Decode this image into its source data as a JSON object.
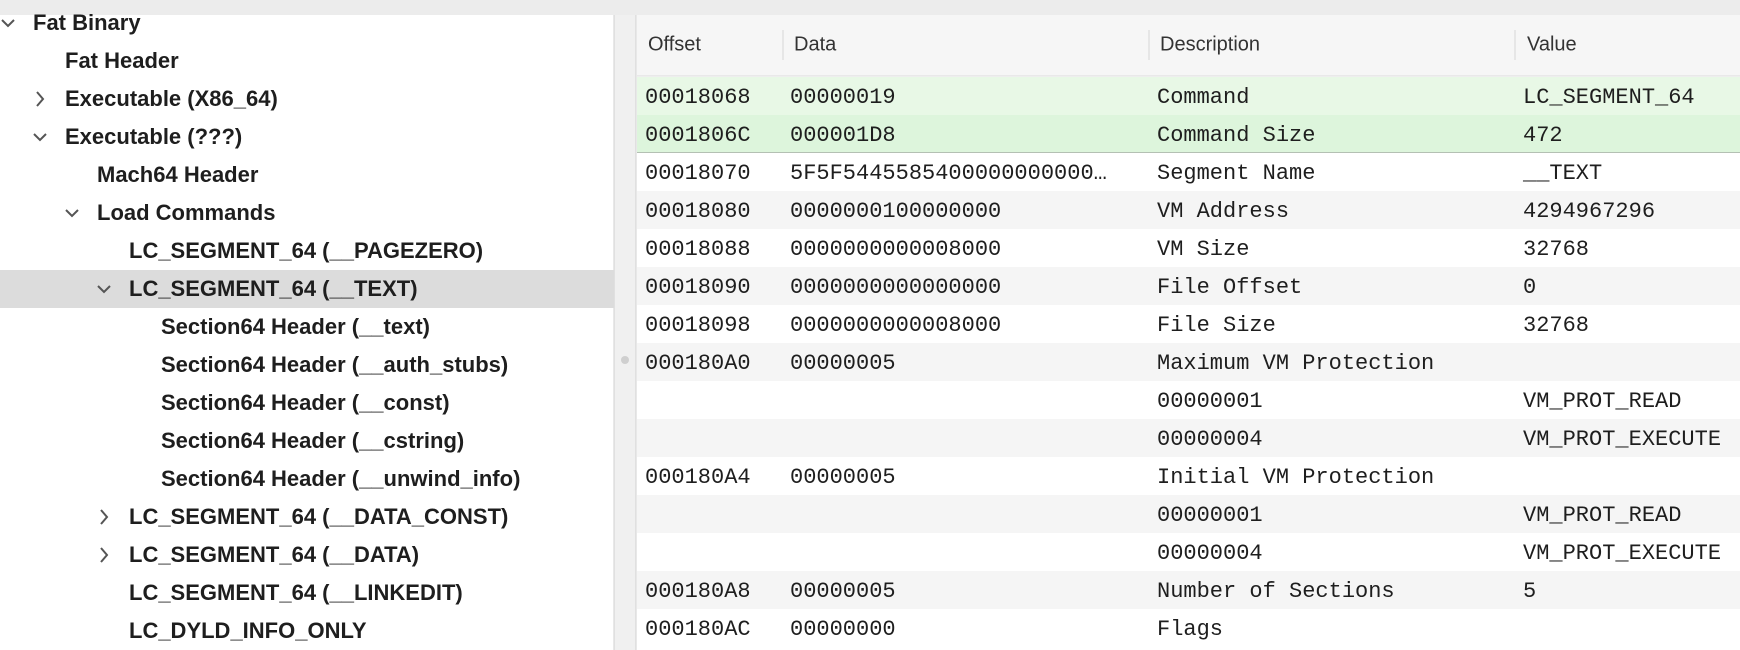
{
  "tree": [
    {
      "label": "Fat Binary",
      "depth": 0,
      "expander": "open"
    },
    {
      "label": "Fat Header",
      "depth": 1
    },
    {
      "label": "Executable  (X86_64)",
      "depth": 1,
      "expander": "closed"
    },
    {
      "label": "Executable  (???)",
      "depth": 1,
      "expander": "open"
    },
    {
      "label": "Mach64 Header",
      "depth": 2
    },
    {
      "label": "Load Commands",
      "depth": 2,
      "expander": "open"
    },
    {
      "label": "LC_SEGMENT_64 (__PAGEZERO)",
      "depth": 3
    },
    {
      "label": "LC_SEGMENT_64 (__TEXT)",
      "depth": 3,
      "expander": "open",
      "selected": true
    },
    {
      "label": "Section64 Header (__text)",
      "depth": 4
    },
    {
      "label": "Section64 Header (__auth_stubs)",
      "depth": 4
    },
    {
      "label": "Section64 Header (__const)",
      "depth": 4
    },
    {
      "label": "Section64 Header (__cstring)",
      "depth": 4
    },
    {
      "label": "Section64 Header (__unwind_info)",
      "depth": 4
    },
    {
      "label": "LC_SEGMENT_64 (__DATA_CONST)",
      "depth": 3,
      "expander": "closed"
    },
    {
      "label": "LC_SEGMENT_64 (__DATA)",
      "depth": 3,
      "expander": "closed"
    },
    {
      "label": "LC_SEGMENT_64 (__LINKEDIT)",
      "depth": 3
    },
    {
      "label": "LC_DYLD_INFO_ONLY",
      "depth": 3
    }
  ],
  "table": {
    "columns": [
      "Offset",
      "Data",
      "Description",
      "Value"
    ],
    "rows": [
      {
        "cells": [
          "00018068",
          "00000019",
          "Command",
          "LC_SEGMENT_64"
        ],
        "highlight": true
      },
      {
        "cells": [
          "0001806C",
          "000001D8",
          "Command Size",
          "472"
        ],
        "highlight": true
      },
      {
        "cells": [
          "00018070",
          "5F5F5445585400000000000…",
          "Segment Name",
          "__TEXT"
        ]
      },
      {
        "cells": [
          "00018080",
          "0000000100000000",
          "VM Address",
          "4294967296"
        ]
      },
      {
        "cells": [
          "00018088",
          "0000000000008000",
          "VM Size",
          "32768"
        ]
      },
      {
        "cells": [
          "00018090",
          "0000000000000000",
          "File Offset",
          "0"
        ]
      },
      {
        "cells": [
          "00018098",
          "0000000000008000",
          "File Size",
          "32768"
        ]
      },
      {
        "cells": [
          "000180A0",
          "00000005",
          "Maximum VM Protection",
          null
        ]
      },
      {
        "cells": [
          null,
          null,
          "00000001",
          "VM_PROT_READ"
        ]
      },
      {
        "cells": [
          null,
          null,
          "00000004",
          "VM_PROT_EXECUTE"
        ]
      },
      {
        "cells": [
          "000180A4",
          "00000005",
          "Initial VM Protection",
          null
        ]
      },
      {
        "cells": [
          null,
          null,
          "00000001",
          "VM_PROT_READ"
        ]
      },
      {
        "cells": [
          null,
          null,
          "00000004",
          "VM_PROT_EXECUTE"
        ]
      },
      {
        "cells": [
          "000180A8",
          "00000005",
          "Number of Sections",
          "5"
        ]
      },
      {
        "cells": [
          "000180AC",
          "00000000",
          "Flags",
          null
        ]
      }
    ]
  }
}
